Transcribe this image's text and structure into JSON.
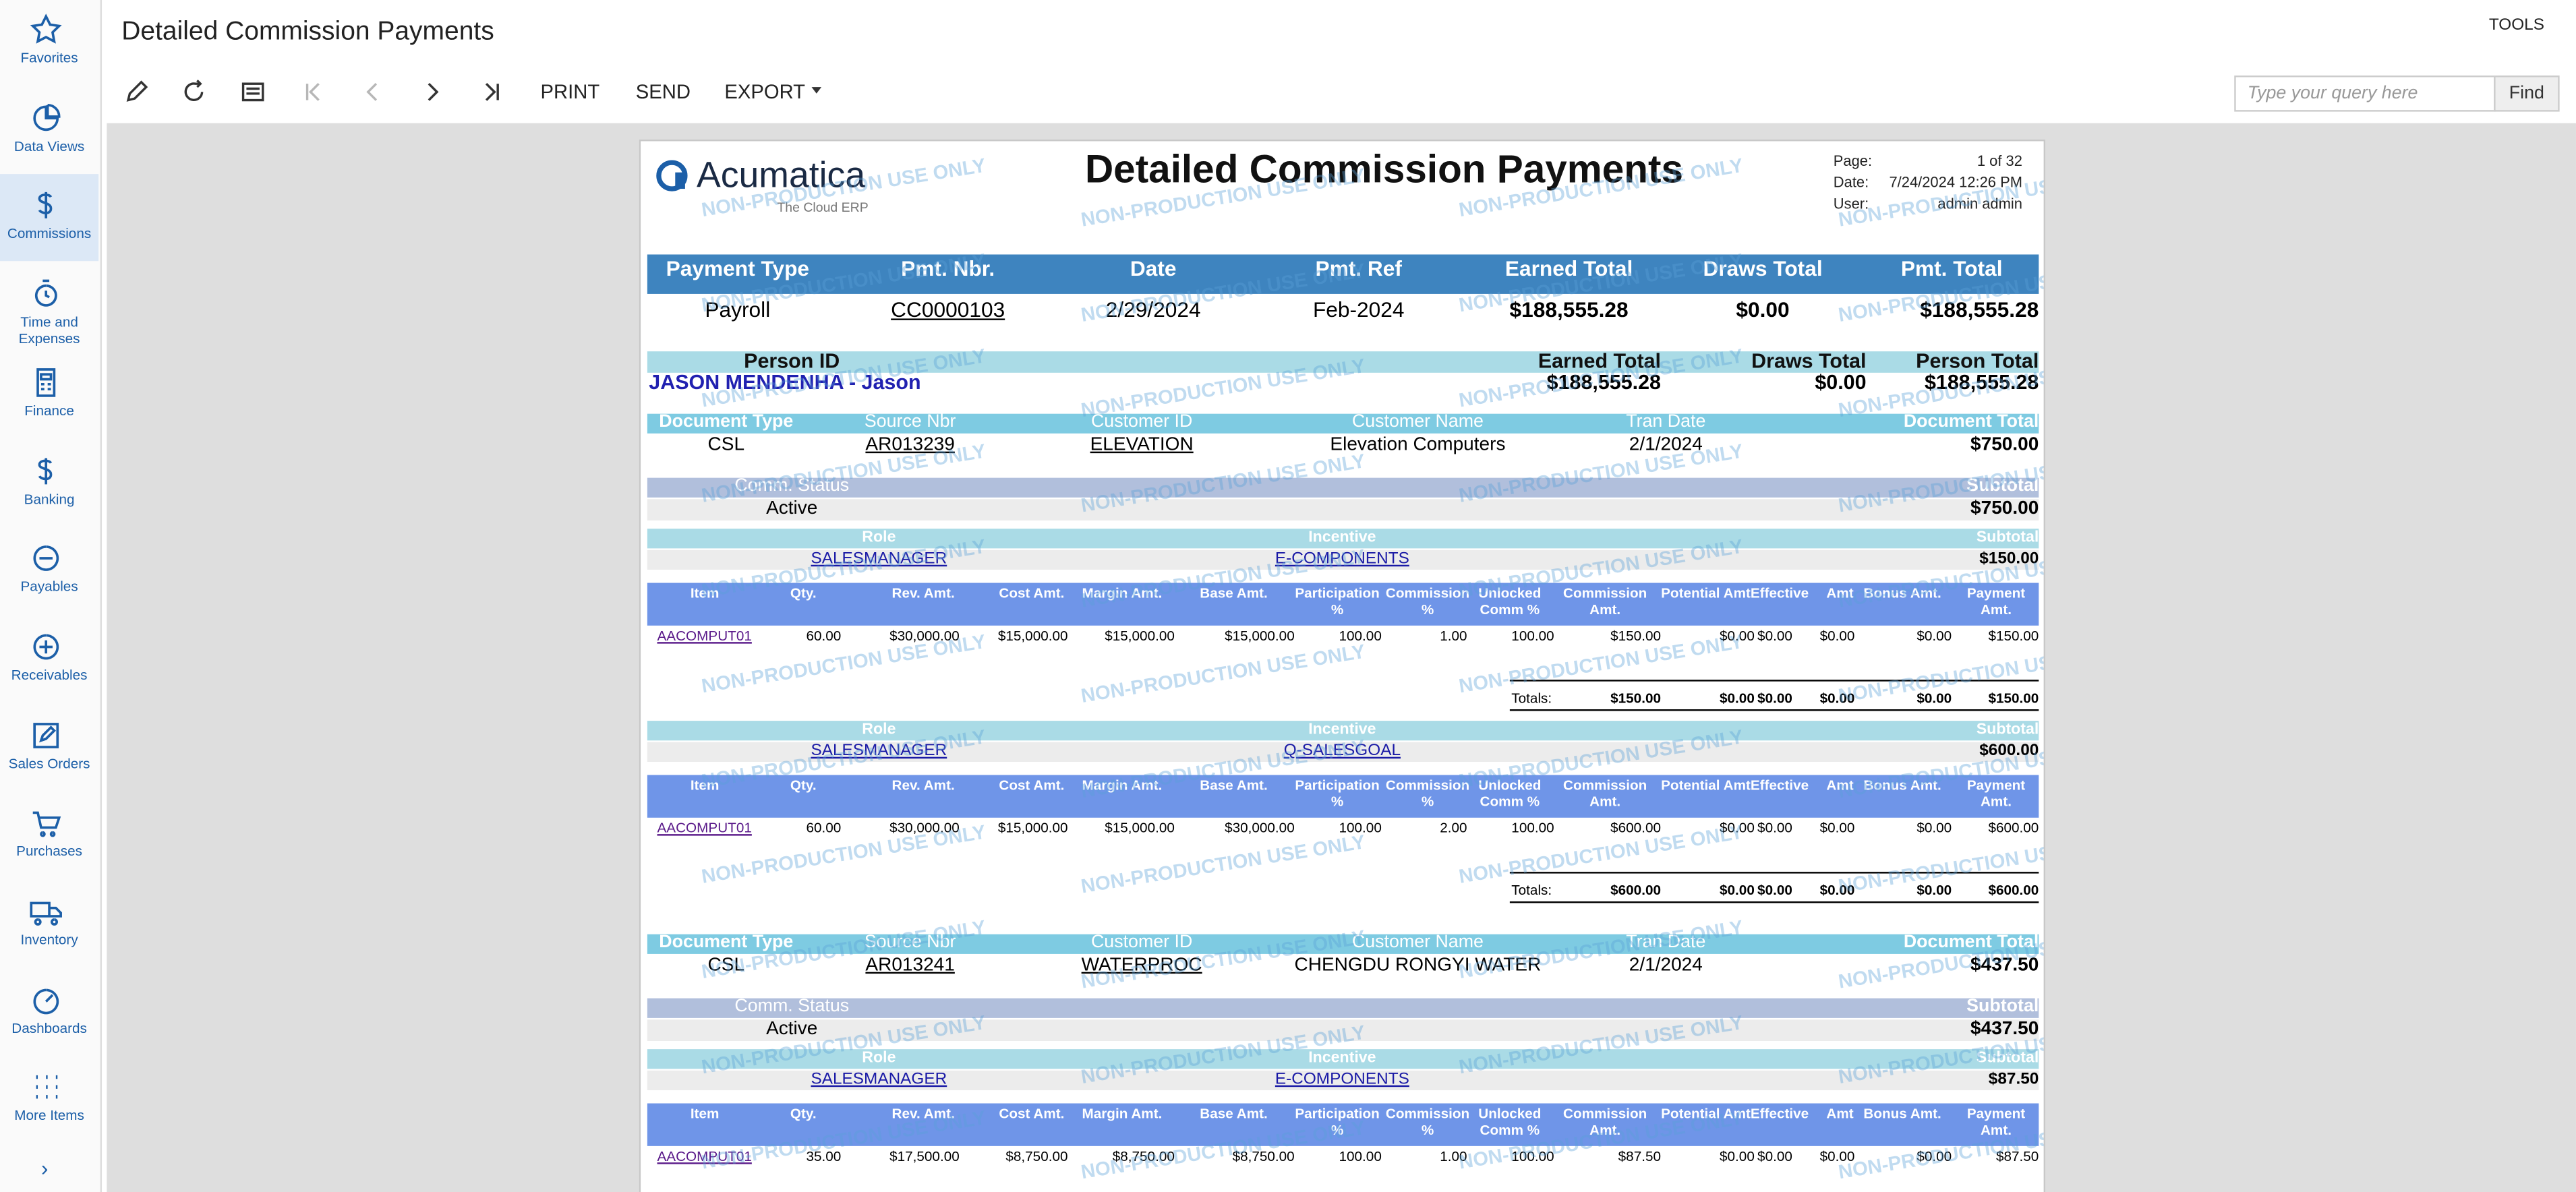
{
  "sidebar": {
    "items": [
      "Favorites",
      "Data Views",
      "Commissions",
      "Time and Expenses",
      "Finance",
      "Banking",
      "Payables",
      "Receivables",
      "Sales Orders",
      "Purchases",
      "Inventory",
      "Dashboards",
      "More Items"
    ]
  },
  "header": {
    "title": "Detailed Commission Payments",
    "tools": "TOOLS"
  },
  "toolbar": {
    "buttons": [
      "PRINT",
      "SEND",
      "EXPORT"
    ],
    "search_placeholder": "Type your query here",
    "find": "Find"
  },
  "report": {
    "logo": "Acumatica",
    "tagline": "The Cloud ERP",
    "title": "Detailed Commission Payments",
    "watermark": "NON-PRODUCTION USE ONLY",
    "meta": [
      {
        "label": "Page:",
        "value": "1 of 32"
      },
      {
        "label": "Date:",
        "value": "7/24/2024 12:26 PM"
      },
      {
        "label": "User:",
        "value": "admin admin"
      }
    ],
    "payment": {
      "headers": [
        "Payment Type",
        "Pmt. Nbr.",
        "Date",
        "Pmt. Ref",
        "Earned Total",
        "Draws Total",
        "Pmt. Total"
      ],
      "row": [
        "Payroll",
        "CC0000103",
        "2/29/2024",
        "Feb-2024",
        "$188,555.28",
        "$0.00",
        "$188,555.28"
      ]
    },
    "person": {
      "headers": [
        "Person ID",
        "Earned Total",
        "Draws Total",
        "Person Total"
      ],
      "row": [
        "JASON MENDENHA - Jason",
        "$188,555.28",
        "$0.00",
        "$188,555.28"
      ]
    },
    "documents": [
      {
        "headers": [
          "Document Type",
          "Source Nbr",
          "Customer ID",
          "Customer Name",
          "Tran Date",
          "Document Total"
        ],
        "row": [
          "CSL",
          "AR013239",
          "ELEVATION",
          "Elevation Computers",
          "2/1/2024",
          "$750.00"
        ],
        "comm_headers": [
          "Comm. Status",
          "Subtotal"
        ],
        "comm_row": [
          "Active",
          "$750.00"
        ],
        "roles": [
          {
            "headers": [
              "Role",
              "Incentive",
              "Subtotal"
            ],
            "row": [
              "SALESMANAGER",
              "E-COMPONENTS",
              "$150.00"
            ],
            "line_headers": [
              "Item",
              "Qty.",
              "Rev. Amt.",
              "Cost Amt.",
              "Margin Amt.",
              "Base Amt.",
              "Participation %",
              "Commission %",
              "Unlocked Comm %",
              "Commission Amt.",
              "Potential",
              "AmtEffective",
              "Amt",
              "Bonus Amt.",
              "Payment Amt."
            ],
            "lines": [
              [
                "AACOMPUT01",
                "60.00",
                "$30,000.00",
                "$15,000.00",
                "$15,000.00",
                "$15,000.00",
                "100.00",
                "1.00",
                "100.00",
                "$150.00",
                "$0.00",
                "$0.00",
                "$0.00",
                "$0.00",
                "$150.00"
              ]
            ],
            "totals_label": "Totals:",
            "totals": [
              "$150.00",
              "$0.00",
              "$0.00",
              "$0.00",
              "$0.00",
              "$150.00"
            ]
          },
          {
            "headers": [
              "Role",
              "Incentive",
              "Subtotal"
            ],
            "row": [
              "SALESMANAGER",
              "Q-SALESGOAL",
              "$600.00"
            ],
            "line_headers": [
              "Item",
              "Qty.",
              "Rev. Amt.",
              "Cost Amt.",
              "Margin Amt.",
              "Base Amt.",
              "Participation %",
              "Commission %",
              "Unlocked Comm %",
              "Commission Amt.",
              "Potential",
              "AmtEffective",
              "Amt",
              "Bonus Amt.",
              "Payment Amt."
            ],
            "lines": [
              [
                "AACOMPUT01",
                "60.00",
                "$30,000.00",
                "$15,000.00",
                "$15,000.00",
                "$30,000.00",
                "100.00",
                "2.00",
                "100.00",
                "$600.00",
                "$0.00",
                "$0.00",
                "$0.00",
                "$0.00",
                "$600.00"
              ]
            ],
            "totals_label": "Totals:",
            "totals": [
              "$600.00",
              "$0.00",
              "$0.00",
              "$0.00",
              "$0.00",
              "$600.00"
            ]
          }
        ]
      },
      {
        "headers": [
          "Document Type",
          "Source Nbr",
          "Customer ID",
          "Customer Name",
          "Tran Date",
          "Document Total"
        ],
        "row": [
          "CSL",
          "AR013241",
          "WATERPROC",
          "CHENGDU RONGYI WATER",
          "2/1/2024",
          "$437.50"
        ],
        "comm_headers": [
          "Comm. Status",
          "Subtotal"
        ],
        "comm_row": [
          "Active",
          "$437.50"
        ],
        "roles": [
          {
            "headers": [
              "Role",
              "Incentive",
              "Subtotal"
            ],
            "row": [
              "SALESMANAGER",
              "E-COMPONENTS",
              "$87.50"
            ],
            "line_headers": [
              "Item",
              "Qty.",
              "Rev. Amt.",
              "Cost Amt.",
              "Margin Amt.",
              "Base Amt.",
              "Participation %",
              "Commission %",
              "Unlocked Comm %",
              "Commission Amt.",
              "Potential",
              "AmtEffective",
              "Amt",
              "Bonus Amt.",
              "Payment Amt."
            ],
            "lines": [
              [
                "AACOMPUT01",
                "35.00",
                "$17,500.00",
                "$8,750.00",
                "$8,750.00",
                "$8,750.00",
                "100.00",
                "1.00",
                "100.00",
                "$87.50",
                "$0.00",
                "$0.00",
                "$0.00",
                "$0.00",
                "$87.50"
              ]
            ]
          }
        ]
      }
    ]
  }
}
